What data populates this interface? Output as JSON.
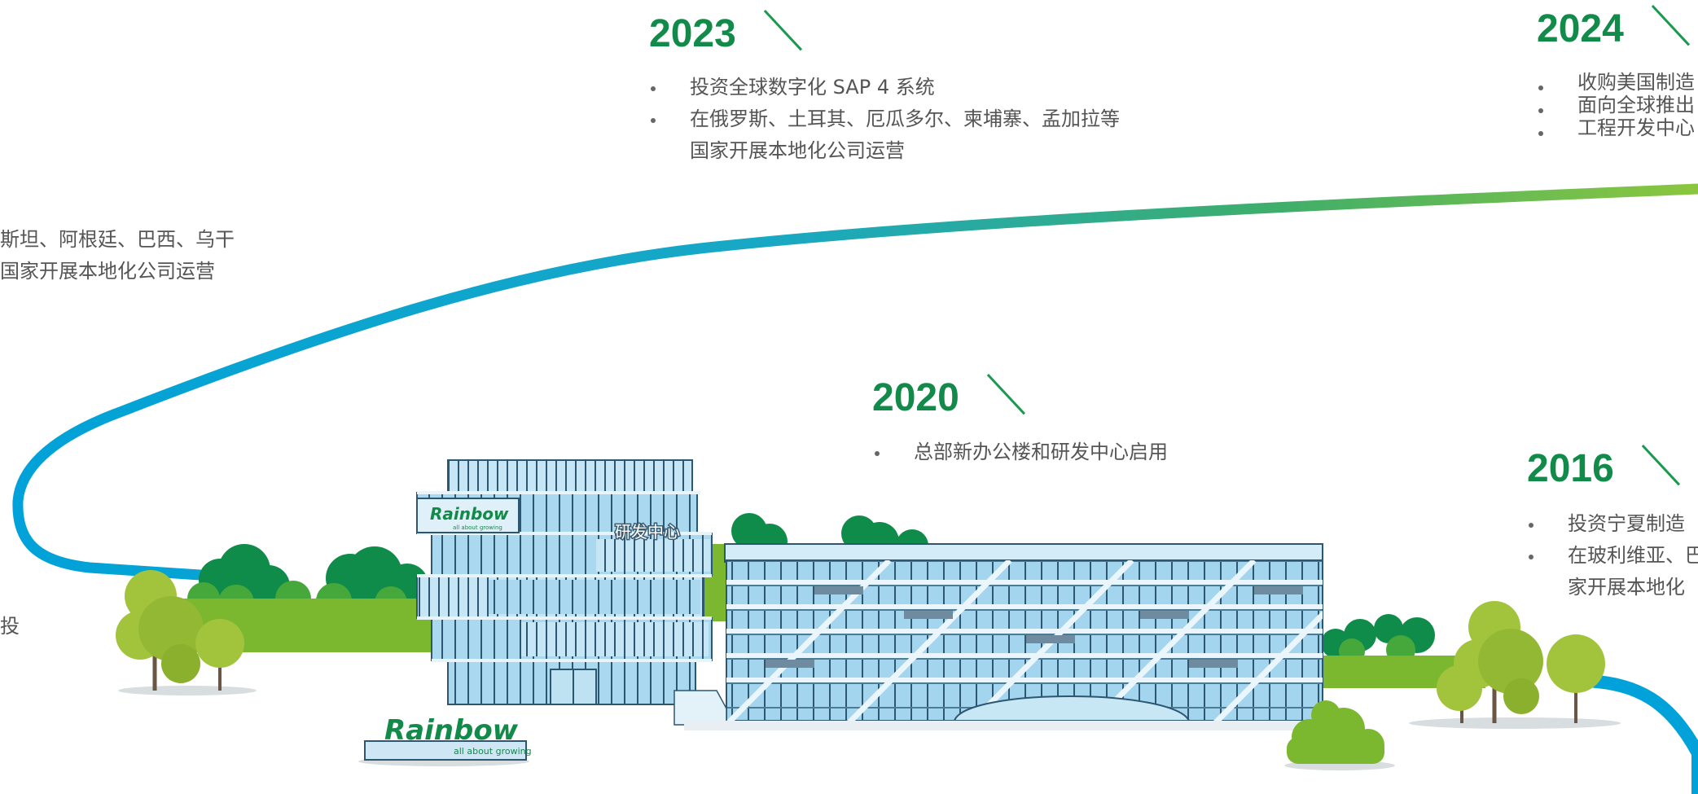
{
  "timeline": {
    "y2023": {
      "year": "2023",
      "items": [
        "投资全球数字化 SAP 4 系统",
        "在俄罗斯、土耳其、厄瓜多尔、柬埔寨、孟加拉等",
        "国家开展本地化公司运营"
      ]
    },
    "y2024": {
      "year": "2024",
      "items": [
        "收购美国制造",
        "面向全球推出",
        "工程开发中心"
      ]
    },
    "y2020": {
      "year": "2020",
      "items": [
        "总部新办公楼和研发中心启用"
      ]
    },
    "y2016": {
      "year": "2016",
      "items": [
        "投资宁夏制造",
        "在玻利维亚、巴",
        "家开展本地化"
      ]
    },
    "left_fragment": {
      "line1": "斯坦、阿根廷、巴西、乌干",
      "line2": "国家开展本地化公司运营",
      "line3": "投"
    }
  },
  "building": {
    "logo_text": "Rainbow",
    "tagline": "all about growing",
    "rd_label": "研发中心"
  },
  "colors": {
    "year_green": "#128a4a",
    "path_blue": "#00a2d9",
    "path_green": "#7bc043",
    "glass": "#a9d8ef",
    "tree": "#a2c43c"
  }
}
